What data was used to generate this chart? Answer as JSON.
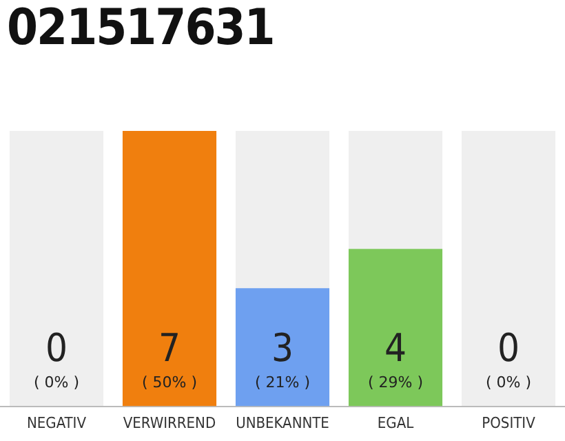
{
  "chart_data": {
    "type": "bar",
    "title": "021517631",
    "categories": [
      "NEGATIV",
      "VERWIRREND",
      "UNBEKANNTE",
      "EGAL",
      "POSITIV"
    ],
    "values": [
      0,
      7,
      3,
      4,
      0
    ],
    "colors": [
      "#f07f0e",
      "#f07f0e",
      "#6ea0f0",
      "#7dc85a",
      "#f07f0e"
    ],
    "value_labels": [
      "0 ( 0% )",
      "7 ( 50% )",
      "3 ( 21% )",
      "4 ( 29% )",
      "0 ( 0% )"
    ],
    "tick_labels": "x",
    "grid": false,
    "legend": false
  }
}
